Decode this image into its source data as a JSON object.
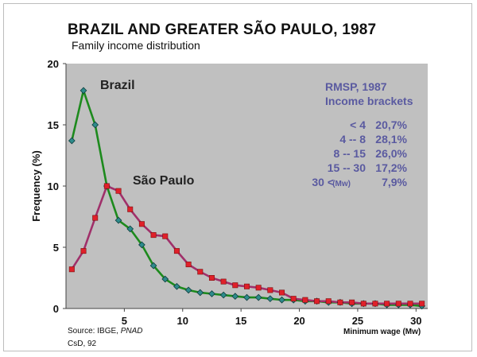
{
  "chart_data": {
    "type": "line",
    "title": "BRAZIL AND GREATER SÃO PAULO, 1987",
    "subtitle": "Family income distribution",
    "xlabel": "Minimum wage (Mw)",
    "ylabel": "Frequency (%)",
    "xlim": [
      0,
      31
    ],
    "ylim": [
      0,
      20
    ],
    "x_ticks": [
      5,
      10,
      15,
      20,
      25,
      30
    ],
    "y_ticks": [
      0,
      5,
      10,
      15,
      20
    ],
    "grid": false,
    "plot_background": "#c0c0c0",
    "series": [
      {
        "name": "Brazil",
        "line_color": "#1d8a1d",
        "marker_color": "#2e8b8b",
        "marker": "diamond",
        "x": [
          0.5,
          1.5,
          2.5,
          3.5,
          4.5,
          5.5,
          6.5,
          7.5,
          8.5,
          9.5,
          10.5,
          11.5,
          12.5,
          13.5,
          14.5,
          15.5,
          16.5,
          17.5,
          18.5,
          19.5,
          20.5,
          21.5,
          22.5,
          23.5,
          24.5,
          25.5,
          26.5,
          27.5,
          28.5,
          29.5,
          30.5
        ],
        "values": [
          13.7,
          17.8,
          15.0,
          10.0,
          7.2,
          6.5,
          5.2,
          3.5,
          2.4,
          1.8,
          1.5,
          1.3,
          1.2,
          1.1,
          1.0,
          0.9,
          0.9,
          0.8,
          0.7,
          0.7,
          0.6,
          0.6,
          0.5,
          0.5,
          0.4,
          0.4,
          0.4,
          0.3,
          0.3,
          0.3,
          0.2
        ]
      },
      {
        "name": "São Paulo",
        "line_color": "#a0306a",
        "marker_color": "#e0202a",
        "marker": "square",
        "x": [
          0.5,
          1.5,
          2.5,
          3.5,
          4.5,
          5.5,
          6.5,
          7.5,
          8.5,
          9.5,
          10.5,
          11.5,
          12.5,
          13.5,
          14.5,
          15.5,
          16.5,
          17.5,
          18.5,
          19.5,
          20.5,
          21.5,
          22.5,
          23.5,
          24.5,
          25.5,
          26.5,
          27.5,
          28.5,
          29.5,
          30.5
        ],
        "values": [
          3.2,
          4.7,
          7.4,
          10.0,
          9.6,
          8.1,
          6.9,
          6.0,
          5.9,
          4.7,
          3.6,
          3.0,
          2.5,
          2.2,
          1.9,
          1.8,
          1.7,
          1.5,
          1.3,
          0.8,
          0.7,
          0.6,
          0.6,
          0.5,
          0.5,
          0.4,
          0.4,
          0.4,
          0.4,
          0.4,
          0.4
        ]
      }
    ],
    "annotation": {
      "header1": "RMSP, 1987",
      "header2": "Income brackets",
      "rows": [
        {
          "range": "<  4",
          "unit": "",
          "value": "20,7%"
        },
        {
          "range": "4 --  8",
          "unit": "",
          "value": "28,1%"
        },
        {
          "range": "8 -- 15",
          "unit": "",
          "value": "26,0%"
        },
        {
          "range": "15 --  30",
          "unit": "",
          "value": "17,2%"
        },
        {
          "range": "30 <",
          "unit": "(Mw)",
          "value": "7,9%"
        }
      ]
    },
    "source_label": "Source: IBGE, ",
    "source_italic": "PNAD",
    "credit": "CsD, 92"
  }
}
